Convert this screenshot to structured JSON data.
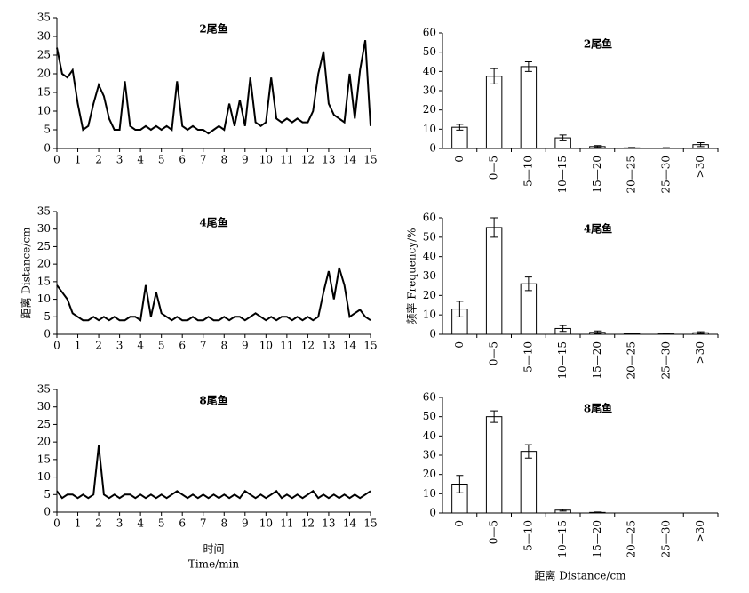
{
  "chart_data": [
    {
      "type": "line",
      "title": "2尾鱼",
      "color": "#000000",
      "x": [
        0,
        0.25,
        0.5,
        0.75,
        1,
        1.25,
        1.5,
        1.75,
        2,
        2.25,
        2.5,
        2.75,
        3,
        3.25,
        3.5,
        3.75,
        4,
        4.25,
        4.5,
        4.75,
        5,
        5.25,
        5.5,
        5.75,
        6,
        6.25,
        6.5,
        6.75,
        7,
        7.25,
        7.5,
        7.75,
        8,
        8.25,
        8.5,
        8.75,
        9,
        9.25,
        9.5,
        9.75,
        10,
        10.25,
        10.5,
        10.75,
        11,
        11.25,
        11.5,
        11.75,
        12,
        12.25,
        12.5,
        12.75,
        13,
        13.25,
        13.5,
        13.75,
        14,
        14.25,
        14.5,
        14.75,
        15
      ],
      "values": [
        27,
        20,
        19,
        21,
        12,
        5,
        6,
        12,
        17,
        14,
        8,
        5,
        5,
        18,
        6,
        5,
        5,
        6,
        5,
        6,
        5,
        6,
        5,
        18,
        6,
        5,
        6,
        5,
        5,
        4,
        5,
        6,
        5,
        12,
        6,
        13,
        6,
        19,
        7,
        6,
        7,
        19,
        8,
        7,
        8,
        7,
        8,
        7,
        7,
        10,
        20,
        26,
        12,
        9,
        8,
        7,
        20,
        8,
        21,
        29,
        6
      ],
      "xlim": [
        0,
        15
      ],
      "xticks": [
        0,
        1,
        2,
        3,
        4,
        5,
        6,
        7,
        8,
        9,
        10,
        11,
        12,
        13,
        14,
        15
      ],
      "ylim": [
        0,
        35
      ],
      "yticks": [
        0,
        5,
        10,
        15,
        20,
        25,
        30,
        35
      ]
    },
    {
      "type": "line",
      "title": "4尾鱼",
      "color": "#000000",
      "ylabel": "距离 Distance/cm",
      "x": [
        0,
        0.25,
        0.5,
        0.75,
        1,
        1.25,
        1.5,
        1.75,
        2,
        2.25,
        2.5,
        2.75,
        3,
        3.25,
        3.5,
        3.75,
        4,
        4.25,
        4.5,
        4.75,
        5,
        5.25,
        5.5,
        5.75,
        6,
        6.25,
        6.5,
        6.75,
        7,
        7.25,
        7.5,
        7.75,
        8,
        8.25,
        8.5,
        8.75,
        9,
        9.25,
        9.5,
        9.75,
        10,
        10.25,
        10.5,
        10.75,
        11,
        11.25,
        11.5,
        11.75,
        12,
        12.25,
        12.5,
        12.75,
        13,
        13.25,
        13.5,
        13.75,
        14,
        14.25,
        14.5,
        14.75,
        15
      ],
      "values": [
        14,
        12,
        10,
        6,
        5,
        4,
        4,
        5,
        4,
        5,
        4,
        5,
        4,
        4,
        5,
        5,
        4,
        14,
        5,
        12,
        6,
        5,
        4,
        5,
        4,
        4,
        5,
        4,
        4,
        5,
        4,
        4,
        5,
        4,
        5,
        5,
        4,
        5,
        6,
        5,
        4,
        5,
        4,
        5,
        5,
        4,
        5,
        4,
        5,
        4,
        5,
        12,
        18,
        10,
        19,
        14,
        5,
        6,
        7,
        5,
        4
      ],
      "xlim": [
        0,
        15
      ],
      "xticks": [
        0,
        1,
        2,
        3,
        4,
        5,
        6,
        7,
        8,
        9,
        10,
        11,
        12,
        13,
        14,
        15
      ],
      "ylim": [
        0,
        35
      ],
      "yticks": [
        0,
        5,
        10,
        15,
        20,
        25,
        30,
        35
      ]
    },
    {
      "type": "line",
      "title": "8尾鱼",
      "color": "#000000",
      "xlabel": [
        "时间",
        "Time/min"
      ],
      "x": [
        0,
        0.25,
        0.5,
        0.75,
        1,
        1.25,
        1.5,
        1.75,
        2,
        2.25,
        2.5,
        2.75,
        3,
        3.25,
        3.5,
        3.75,
        4,
        4.25,
        4.5,
        4.75,
        5,
        5.25,
        5.5,
        5.75,
        6,
        6.25,
        6.5,
        6.75,
        7,
        7.25,
        7.5,
        7.75,
        8,
        8.25,
        8.5,
        8.75,
        9,
        9.25,
        9.5,
        9.75,
        10,
        10.25,
        10.5,
        10.75,
        11,
        11.25,
        11.5,
        11.75,
        12,
        12.25,
        12.5,
        12.75,
        13,
        13.25,
        13.5,
        13.75,
        14,
        14.25,
        14.5,
        14.75,
        15
      ],
      "values": [
        6,
        4,
        5,
        5,
        4,
        5,
        4,
        5,
        19,
        5,
        4,
        5,
        4,
        5,
        5,
        4,
        5,
        4,
        5,
        4,
        5,
        4,
        5,
        6,
        5,
        4,
        5,
        4,
        5,
        4,
        5,
        4,
        5,
        4,
        5,
        4,
        6,
        5,
        4,
        5,
        4,
        5,
        6,
        4,
        5,
        4,
        5,
        4,
        5,
        6,
        4,
        5,
        4,
        5,
        4,
        5,
        4,
        5,
        4,
        5,
        6
      ],
      "xlim": [
        0,
        15
      ],
      "xticks": [
        0,
        1,
        2,
        3,
        4,
        5,
        6,
        7,
        8,
        9,
        10,
        11,
        12,
        13,
        14,
        15
      ],
      "ylim": [
        0,
        35
      ],
      "yticks": [
        0,
        5,
        10,
        15,
        20,
        25,
        30,
        35
      ]
    },
    {
      "type": "bar",
      "title": "2尾鱼",
      "color": "#ffffff",
      "categories": [
        "0",
        "0—5",
        "5—10",
        "10—15",
        "15—20",
        "20—25",
        "25—30",
        ">30"
      ],
      "values": [
        11,
        37.5,
        42.5,
        5.5,
        1,
        0.3,
        0.2,
        2
      ],
      "errors": [
        1.5,
        4,
        2.5,
        1.5,
        0.5,
        0.2,
        0.2,
        1
      ],
      "ylim": [
        0,
        60
      ],
      "yticks": [
        0,
        10,
        20,
        30,
        40,
        50,
        60
      ]
    },
    {
      "type": "bar",
      "title": "4尾鱼",
      "color": "#ffffff",
      "ylabel": "频率 Frequency/%",
      "categories": [
        "0",
        "0—5",
        "5—10",
        "10—15",
        "15—20",
        "20—25",
        "25—30",
        ">30"
      ],
      "values": [
        13,
        55,
        26,
        3,
        1,
        0.3,
        0.2,
        0.8
      ],
      "errors": [
        4,
        5,
        3.5,
        1.5,
        0.7,
        0.2,
        0.1,
        0.5
      ],
      "ylim": [
        0,
        60
      ],
      "yticks": [
        0,
        10,
        20,
        30,
        40,
        50,
        60
      ]
    },
    {
      "type": "bar",
      "title": "8尾鱼",
      "color": "#ffffff",
      "xlabel": [
        "距离 Distance/cm"
      ],
      "categories": [
        "0",
        "0—5",
        "5—10",
        "10—15",
        "15—20",
        "20—25",
        "25—30",
        ">30"
      ],
      "values": [
        15,
        50,
        32,
        1.5,
        0.3,
        0,
        0,
        0
      ],
      "errors": [
        4.5,
        3,
        3.5,
        0.5,
        0.2,
        0,
        0,
        0
      ],
      "ylim": [
        0,
        60
      ],
      "yticks": [
        0,
        10,
        20,
        30,
        40,
        50,
        60
      ]
    }
  ]
}
